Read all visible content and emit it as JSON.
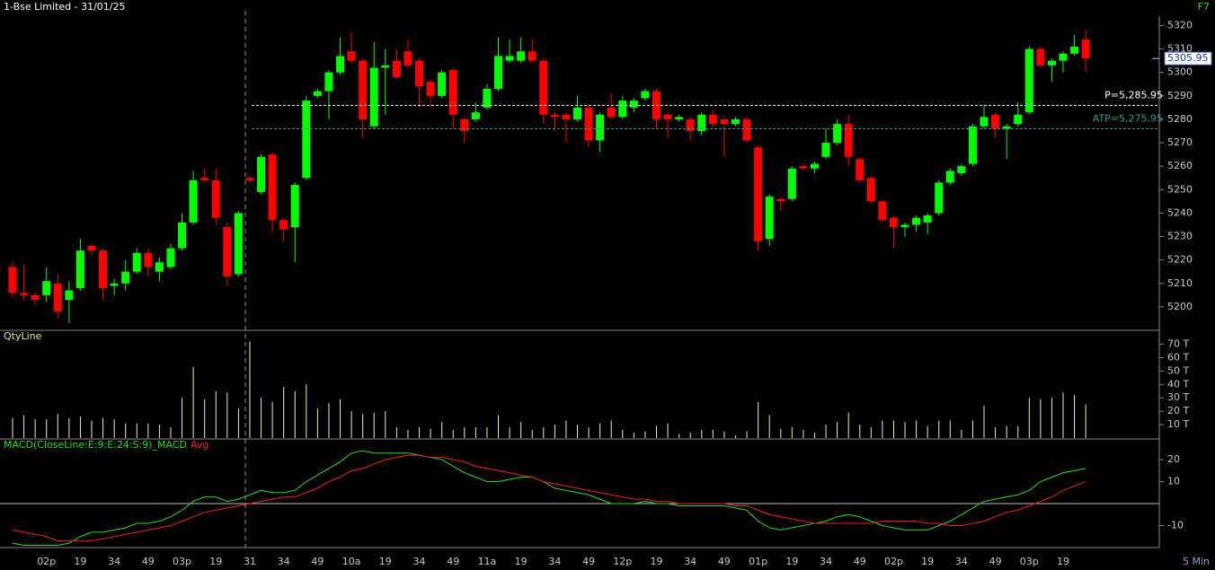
{
  "chart_data": [
    {
      "type": "candlestick",
      "title": "1-Bse Limited - 31/01/25",
      "corner_label": "F7",
      "categories": [
        null,
        null,
        null,
        "02p",
        null,
        null,
        "19",
        null,
        null,
        "34",
        null,
        null,
        "49",
        null,
        null,
        "03p",
        null,
        null,
        "19",
        null,
        null,
        "31",
        null,
        null,
        "34",
        null,
        null,
        "49",
        null,
        null,
        "10a",
        null,
        null,
        "19",
        null,
        null,
        "34",
        null,
        null,
        "49",
        null,
        null,
        "11a",
        null,
        null,
        "19",
        null,
        null,
        "34",
        null,
        null,
        "49",
        null,
        null,
        "12p",
        null,
        null,
        "19",
        null,
        null,
        "34",
        null,
        null,
        "49",
        null,
        null,
        "01p",
        null,
        null,
        "19",
        null,
        null,
        "34",
        null,
        null,
        "49",
        null,
        null,
        "02p",
        null,
        null,
        "19",
        null,
        null,
        "34",
        null,
        null,
        "49",
        null,
        null,
        "03p",
        null,
        null,
        "19",
        null,
        null
      ],
      "open": [
        5217,
        5206,
        5205,
        5205,
        5210,
        5203,
        5208,
        5226,
        5224,
        5209,
        5210,
        5215,
        5223,
        5215,
        5217,
        5225,
        5236,
        5255,
        5254,
        5234,
        5214,
        5255,
        5249,
        5265,
        5237,
        5234,
        5255,
        5290,
        5292,
        5300,
        5309,
        5305,
        5277,
        5302,
        5305,
        5309,
        5305,
        5296,
        5290,
        5301,
        5280,
        5280,
        5285,
        5293,
        5305,
        5305,
        5309,
        5305,
        5282,
        5282,
        5280,
        5285,
        5271,
        5285,
        5281,
        5285,
        5289,
        5292,
        5282,
        5280,
        5280,
        5275,
        5282,
        5280,
        5278,
        5280,
        5268,
        5229,
        5246,
        5246,
        5260,
        5259,
        5264,
        5270,
        5278,
        5263,
        5255,
        5245,
        5238,
        5234,
        5235,
        5236,
        5240,
        5253,
        5257,
        5261,
        5277,
        5282,
        5276,
        5278,
        5283,
        5310,
        5303,
        5305,
        5308,
        5314
      ],
      "high": [
        5219,
        5218,
        5206,
        5217,
        5214,
        5211,
        5229,
        5227,
        5225,
        5212,
        5220,
        5225,
        5225,
        5221,
        5227,
        5240,
        5258,
        5259,
        5259,
        5236,
        5241,
        5256,
        5265,
        5266,
        5238,
        5253,
        5290,
        5293,
        5301,
        5315,
        5317,
        5306,
        5313,
        5310,
        5310,
        5314,
        5306,
        5297,
        5301,
        5302,
        5281,
        5287,
        5295,
        5315,
        5314,
        5315,
        5314,
        5306,
        5283,
        5283,
        5290,
        5286,
        5283,
        5291,
        5290,
        5289,
        5293,
        5293,
        5283,
        5282,
        5281,
        5283,
        5284,
        5281,
        5281,
        5281,
        5269,
        5248,
        5247,
        5260,
        5261,
        5262,
        5276,
        5280,
        5282,
        5264,
        5256,
        5246,
        5239,
        5236,
        5239,
        5240,
        5254,
        5259,
        5261,
        5278,
        5286,
        5283,
        5278,
        5287,
        5311,
        5311,
        5306,
        5309,
        5316,
        5318
      ],
      "low": [
        5204,
        5203,
        5201,
        5202,
        5195,
        5193,
        5207,
        5222,
        5203,
        5205,
        5207,
        5214,
        5213,
        5211,
        5216,
        5224,
        5235,
        5253,
        5235,
        5209,
        5213,
        5253,
        5248,
        5232,
        5228,
        5219,
        5254,
        5289,
        5280,
        5299,
        5304,
        5272,
        5276,
        5282,
        5297,
        5302,
        5285,
        5285,
        5289,
        5276,
        5270,
        5279,
        5284,
        5292,
        5304,
        5304,
        5304,
        5278,
        5275,
        5270,
        5279,
        5268,
        5266,
        5280,
        5280,
        5283,
        5288,
        5276,
        5272,
        5279,
        5271,
        5273,
        5277,
        5264,
        5277,
        5270,
        5224,
        5226,
        5241,
        5245,
        5258,
        5257,
        5263,
        5269,
        5260,
        5253,
        5244,
        5236,
        5225,
        5230,
        5232,
        5231,
        5239,
        5252,
        5256,
        5260,
        5276,
        5272,
        5263,
        5277,
        5282,
        5302,
        5296,
        5300,
        5307,
        5300
      ],
      "close": [
        5206,
        5205,
        5203,
        5211,
        5198,
        5207,
        5224,
        5224,
        5208,
        5210,
        5215,
        5223,
        5217,
        5219,
        5225,
        5236,
        5254,
        5254,
        5238,
        5213,
        5240,
        5254,
        5264,
        5237,
        5233,
        5252,
        5288,
        5292,
        5300,
        5307,
        5305,
        5280,
        5302,
        5303,
        5298,
        5303,
        5294,
        5290,
        5300,
        5282,
        5275,
        5283,
        5293,
        5307,
        5307,
        5309,
        5305,
        5282,
        5281,
        5280,
        5285,
        5271,
        5282,
        5281,
        5288,
        5288,
        5292,
        5280,
        5280,
        5281,
        5275,
        5282,
        5278,
        5278,
        5280,
        5271,
        5228,
        5247,
        5245,
        5259,
        5259,
        5261,
        5270,
        5278,
        5264,
        5254,
        5245,
        5237,
        5234,
        5235,
        5238,
        5239,
        5253,
        5258,
        5260,
        5277,
        5281,
        5276,
        5277,
        5282,
        5310,
        5303,
        5305,
        5308,
        5311,
        5306
      ],
      "up_color": "#00ff00",
      "down_color": "#ff0000",
      "ylim": [
        5190,
        5324
      ],
      "yticks": [
        5200,
        5210,
        5220,
        5230,
        5240,
        5250,
        5260,
        5270,
        5280,
        5290,
        5300,
        5310,
        5320
      ],
      "last_price": 5305.95,
      "levels": [
        {
          "value": 5285.95,
          "label": "P=5,285.95",
          "color": "#ffffff"
        },
        {
          "value": 5275.95,
          "label": "ATP=5,275.95",
          "color": "#2a9d8f"
        }
      ]
    },
    {
      "type": "bar",
      "title": "QtyLine",
      "color": "#f2f2b0",
      "values": [
        15,
        17,
        14,
        14,
        18,
        15,
        16,
        13,
        15,
        14,
        11,
        11,
        11,
        10,
        8,
        30,
        53,
        29,
        35,
        34,
        22,
        72,
        30,
        27,
        38,
        35,
        40,
        22,
        26,
        29,
        20,
        18,
        19,
        20,
        8,
        6,
        8,
        7,
        12,
        6,
        8,
        8,
        8,
        17,
        8,
        12,
        6,
        8,
        10,
        13,
        10,
        8,
        11,
        13,
        6,
        4,
        5,
        9,
        11,
        3,
        4,
        6,
        6,
        5,
        2,
        5,
        27,
        17,
        7,
        8,
        6,
        4,
        10,
        12,
        19,
        10,
        8,
        13,
        13,
        12,
        13,
        9,
        13,
        13,
        6,
        13,
        24,
        8,
        9,
        9,
        30,
        29,
        30,
        34,
        32,
        25
      ],
      "ylim": [
        0,
        79
      ],
      "yticks": [
        {
          "value": 10,
          "label": "10 T"
        },
        {
          "value": 20,
          "label": "20 T"
        },
        {
          "value": 30,
          "label": "30 T"
        },
        {
          "value": 40,
          "label": "40 T"
        },
        {
          "value": 50,
          "label": "50 T"
        },
        {
          "value": 60,
          "label": "60 T"
        },
        {
          "value": 70,
          "label": "70 T"
        }
      ]
    },
    {
      "type": "line",
      "interval": "5 Min",
      "series": [
        {
          "name": "MACD(CloseLine:E:9:E:24:S:9)_MACD",
          "color": "#22dd22",
          "values": [
            -18,
            -19,
            -19,
            -19,
            -19,
            -18,
            -15,
            -13,
            -13,
            -12,
            -11,
            -9,
            -9,
            -8,
            -6,
            -3,
            1,
            3,
            3,
            1,
            2,
            4,
            6,
            5,
            5,
            6,
            10,
            13,
            16,
            19,
            23,
            24,
            23,
            23,
            23,
            23,
            22,
            21,
            20,
            17,
            14,
            12,
            10,
            10,
            11,
            12,
            12,
            10,
            7,
            6,
            5,
            4,
            2,
            0,
            0,
            0,
            1,
            0,
            0,
            -1,
            -1,
            -1,
            -1,
            -1,
            -2,
            -3,
            -8,
            -11,
            -12,
            -11,
            -10,
            -9,
            -8,
            -6,
            -5,
            -6,
            -8,
            -10,
            -11,
            -12,
            -12,
            -12,
            -10,
            -8,
            -5,
            -2,
            1,
            2,
            3,
            4,
            6,
            10,
            12,
            14,
            15,
            16
          ]
        },
        {
          "name": "Avg",
          "color": "#ee2222",
          "values": [
            -12,
            -13,
            -14,
            -15,
            -17,
            -17,
            -17,
            -17,
            -16,
            -15,
            -14,
            -13,
            -12,
            -11,
            -10,
            -8,
            -6,
            -4,
            -3,
            -2,
            -1,
            0,
            1,
            2,
            3,
            3,
            5,
            7,
            10,
            12,
            15,
            16,
            18,
            20,
            21,
            22,
            22,
            21,
            21,
            20,
            19,
            17,
            16,
            15,
            14,
            13,
            12,
            10,
            9,
            8,
            7,
            6,
            5,
            4,
            3,
            2,
            2,
            1,
            1,
            0,
            0,
            0,
            0,
            0,
            -1,
            -1,
            -3,
            -5,
            -6,
            -7,
            -8,
            -9,
            -9,
            -9,
            -9,
            -9,
            -9,
            -8,
            -8,
            -8,
            -8,
            -9,
            -9,
            -10,
            -10,
            -9,
            -8,
            -6,
            -4,
            -3,
            -1,
            1,
            3,
            6,
            8,
            10
          ]
        }
      ],
      "ylim": [
        -20,
        29
      ],
      "yticks": [
        20,
        10,
        -10
      ]
    }
  ]
}
